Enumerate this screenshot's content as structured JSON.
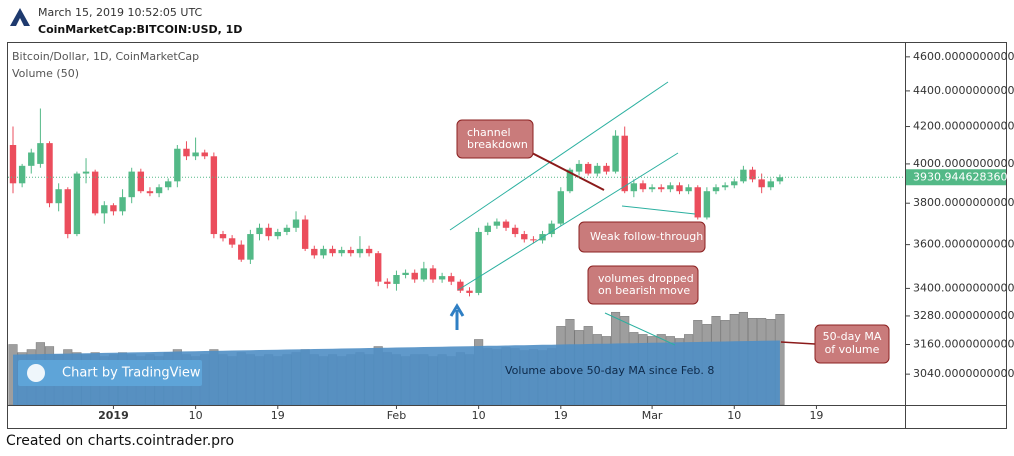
{
  "header": {
    "timestamp": "March 15, 2019 10:52:05 UTC",
    "symbol": "CoinMarketCap:BITCOIN:USD, 1D"
  },
  "footer": "Created on charts.cointrader.pro",
  "chart_data": {
    "type": "candlestick",
    "title": "Bitcoin/Dollar, 1D, CoinMarketCap",
    "subtitle": "Volume (50)",
    "watermark": "Chart by TradingView",
    "log_scale": true,
    "up_color": "#53b987",
    "down_color": "#eb4d5c",
    "volume_color": "#9e9e9e",
    "volume_ma_color": "#4f8ec4",
    "ylim": [
      2920,
      4690
    ],
    "yticks": [
      {
        "value": 3040,
        "label": "3040.0000000000"
      },
      {
        "value": 3160,
        "label": "3160.0000000000"
      },
      {
        "value": 3280,
        "label": "3280.0000000000"
      },
      {
        "value": 3400,
        "label": "3400.0000000000"
      },
      {
        "value": 3600,
        "label": "3600.0000000000"
      },
      {
        "value": 3800,
        "label": "3800.0000000000"
      },
      {
        "value": 4000,
        "label": "4000.0000000000"
      },
      {
        "value": 4200,
        "label": "4200.0000000000"
      },
      {
        "value": 4400,
        "label": "4400.0000000000"
      },
      {
        "value": 4600,
        "label": "4600.0000000000"
      }
    ],
    "last_price": {
      "value": 3930.94462836,
      "label": "3930.9446283600"
    },
    "volume_ylim": [
      0,
      360
    ],
    "categories": [
      null,
      null,
      null,
      null,
      null,
      null,
      null,
      null,
      null,
      null,
      null,
      "2019",
      null,
      null,
      null,
      null,
      null,
      null,
      null,
      null,
      "10",
      null,
      null,
      null,
      null,
      null,
      null,
      null,
      null,
      "19",
      null,
      null,
      null,
      null,
      null,
      null,
      null,
      null,
      null,
      null,
      null,
      null,
      "Feb",
      null,
      null,
      null,
      null,
      null,
      null,
      null,
      null,
      "10",
      null,
      null,
      null,
      null,
      null,
      null,
      null,
      null,
      "19",
      null,
      null,
      null,
      null,
      null,
      null,
      null,
      null,
      null,
      "Mar",
      null,
      null,
      null,
      null,
      null,
      null,
      null,
      null,
      "10",
      null,
      null,
      null,
      null,
      null,
      null,
      null,
      null,
      "19",
      null,
      null,
      null,
      null,
      null,
      null,
      null,
      null,
      null
    ],
    "ohlc": [
      [
        4100,
        4200,
        3850,
        3900
      ],
      [
        3900,
        4000,
        3880,
        3990
      ],
      [
        3990,
        4080,
        3950,
        4060
      ],
      [
        4000,
        4300,
        3980,
        4110
      ],
      [
        4110,
        4120,
        3780,
        3800
      ],
      [
        3800,
        3900,
        3760,
        3870
      ],
      [
        3870,
        3880,
        3630,
        3650
      ],
      [
        3650,
        3960,
        3640,
        3950
      ],
      [
        3950,
        4030,
        3900,
        3960
      ],
      [
        3960,
        3970,
        3740,
        3750
      ],
      [
        3750,
        3810,
        3700,
        3790
      ],
      [
        3790,
        3800,
        3740,
        3760
      ],
      [
        3760,
        3870,
        3740,
        3830
      ],
      [
        3830,
        3980,
        3800,
        3960
      ],
      [
        3960,
        3975,
        3850,
        3860
      ],
      [
        3860,
        3880,
        3835,
        3850
      ],
      [
        3850,
        3895,
        3830,
        3880
      ],
      [
        3880,
        3925,
        3865,
        3910
      ],
      [
        3910,
        4100,
        3880,
        4080
      ],
      [
        4080,
        4120,
        4020,
        4040
      ],
      [
        4040,
        4140,
        4020,
        4060
      ],
      [
        4060,
        4075,
        4025,
        4040
      ],
      [
        4040,
        4060,
        3630,
        3650
      ],
      [
        3650,
        3665,
        3615,
        3630
      ],
      [
        3630,
        3645,
        3585,
        3600
      ],
      [
        3600,
        3620,
        3520,
        3530
      ],
      [
        3530,
        3670,
        3510,
        3650
      ],
      [
        3650,
        3700,
        3620,
        3680
      ],
      [
        3680,
        3700,
        3620,
        3640
      ],
      [
        3640,
        3675,
        3625,
        3660
      ],
      [
        3660,
        3695,
        3645,
        3680
      ],
      [
        3680,
        3760,
        3660,
        3720
      ],
      [
        3720,
        3740,
        3570,
        3580
      ],
      [
        3580,
        3595,
        3535,
        3550
      ],
      [
        3550,
        3595,
        3535,
        3580
      ],
      [
        3580,
        3595,
        3545,
        3560
      ],
      [
        3560,
        3590,
        3545,
        3575
      ],
      [
        3575,
        3590,
        3545,
        3560
      ],
      [
        3560,
        3640,
        3540,
        3580
      ],
      [
        3580,
        3595,
        3545,
        3560
      ],
      [
        3560,
        3570,
        3410,
        3430
      ],
      [
        3430,
        3445,
        3400,
        3420
      ],
      [
        3420,
        3480,
        3390,
        3460
      ],
      [
        3460,
        3485,
        3445,
        3470
      ],
      [
        3470,
        3485,
        3425,
        3440
      ],
      [
        3440,
        3520,
        3430,
        3490
      ],
      [
        3490,
        3505,
        3425,
        3440
      ],
      [
        3440,
        3470,
        3425,
        3455
      ],
      [
        3455,
        3470,
        3415,
        3430
      ],
      [
        3430,
        3440,
        3380,
        3390
      ],
      [
        3390,
        3405,
        3365,
        3380
      ],
      [
        3380,
        3680,
        3370,
        3660
      ],
      [
        3660,
        3705,
        3645,
        3690
      ],
      [
        3690,
        3725,
        3675,
        3710
      ],
      [
        3710,
        3720,
        3665,
        3680
      ],
      [
        3680,
        3695,
        3635,
        3650
      ],
      [
        3650,
        3665,
        3610,
        3625
      ],
      [
        3625,
        3640,
        3605,
        3620
      ],
      [
        3620,
        3665,
        3605,
        3650
      ],
      [
        3650,
        3715,
        3635,
        3700
      ],
      [
        3700,
        3880,
        3690,
        3860
      ],
      [
        3860,
        3980,
        3850,
        3970
      ],
      [
        3960,
        4020,
        3940,
        4000
      ],
      [
        4000,
        4010,
        3940,
        3950
      ],
      [
        3950,
        4005,
        3935,
        3990
      ],
      [
        3990,
        4005,
        3945,
        3960
      ],
      [
        3960,
        4180,
        3950,
        4150
      ],
      [
        4150,
        4200,
        3850,
        3860
      ],
      [
        3860,
        3920,
        3830,
        3900
      ],
      [
        3900,
        3915,
        3855,
        3870
      ],
      [
        3870,
        3895,
        3855,
        3880
      ],
      [
        3880,
        3895,
        3855,
        3870
      ],
      [
        3870,
        3905,
        3855,
        3890
      ],
      [
        3890,
        3905,
        3845,
        3860
      ],
      [
        3860,
        3895,
        3845,
        3880
      ],
      [
        3880,
        3890,
        3720,
        3730
      ],
      [
        3730,
        3880,
        3720,
        3860
      ],
      [
        3860,
        3895,
        3845,
        3880
      ],
      [
        3880,
        3905,
        3865,
        3890
      ],
      [
        3890,
        3925,
        3875,
        3910
      ],
      [
        3910,
        3990,
        3900,
        3970
      ],
      [
        3970,
        3985,
        3905,
        3920
      ],
      [
        3920,
        3950,
        3850,
        3880
      ],
      [
        3880,
        3925,
        3865,
        3910
      ],
      [
        3910,
        3945,
        3895,
        3930.94462836
      ],
      null,
      null,
      null,
      null,
      null,
      null,
      null,
      null,
      null,
      null,
      null,
      null,
      null
    ],
    "volume": [
      60,
      52,
      55,
      62,
      58,
      50,
      55,
      52,
      50,
      52,
      48,
      50,
      52,
      50,
      48,
      50,
      48,
      52,
      55,
      50,
      48,
      50,
      55,
      50,
      48,
      52,
      50,
      48,
      50,
      48,
      50,
      52,
      55,
      50,
      48,
      50,
      48,
      50,
      52,
      50,
      58,
      52,
      50,
      48,
      50,
      50,
      48,
      50,
      48,
      52,
      50,
      65,
      56,
      55,
      57,
      56,
      54,
      55,
      54,
      56,
      78,
      85,
      74,
      78,
      70,
      68,
      92,
      88,
      72,
      70,
      68,
      70,
      68,
      66,
      70,
      84,
      80,
      88,
      84,
      90,
      92,
      86,
      86,
      85,
      90,
      null,
      null,
      null,
      null,
      null,
      null,
      null,
      null,
      null,
      null,
      null,
      null,
      null
    ],
    "volume_ma": [
      50.0,
      50.2,
      50.3,
      50.5,
      50.7,
      50.8,
      51.0,
      51.2,
      51.3,
      51.5,
      51.7,
      51.8,
      52.0,
      52.2,
      52.3,
      52.5,
      52.7,
      52.8,
      53.0,
      53.2,
      53.3,
      53.5,
      53.7,
      53.8,
      54.0,
      54.2,
      54.3,
      54.5,
      54.7,
      54.8,
      55.0,
      55.2,
      55.3,
      55.5,
      55.7,
      55.8,
      56.0,
      56.2,
      56.3,
      56.5,
      56.7,
      56.8,
      57.0,
      57.2,
      57.3,
      57.5,
      57.7,
      57.8,
      58.0,
      58.2,
      58.3,
      58.5,
      58.7,
      58.8,
      59.0,
      59.2,
      59.3,
      59.5,
      59.7,
      59.8,
      60.0,
      60.2,
      60.3,
      60.5,
      60.7,
      60.8,
      61.0,
      61.2,
      61.3,
      61.5,
      61.7,
      61.8,
      62.0,
      62.2,
      62.3,
      62.5,
      62.7,
      62.8,
      63.0,
      63.2,
      63.3,
      63.5,
      63.7,
      63.8,
      64.0,
      null,
      null,
      null,
      null,
      null,
      null,
      null,
      null,
      null,
      null,
      null,
      null,
      null
    ],
    "annotations": [
      {
        "text": [
          "channel",
          "breakdown"
        ]
      },
      {
        "text": [
          "Weak follow-through"
        ]
      },
      {
        "text": [
          "volumes dropped",
          "on bearish move"
        ]
      },
      {
        "text": [
          "50-day MA",
          "of volume"
        ]
      },
      {
        "text": [
          "Volume above 50-day MA since Feb. 8"
        ]
      }
    ]
  }
}
